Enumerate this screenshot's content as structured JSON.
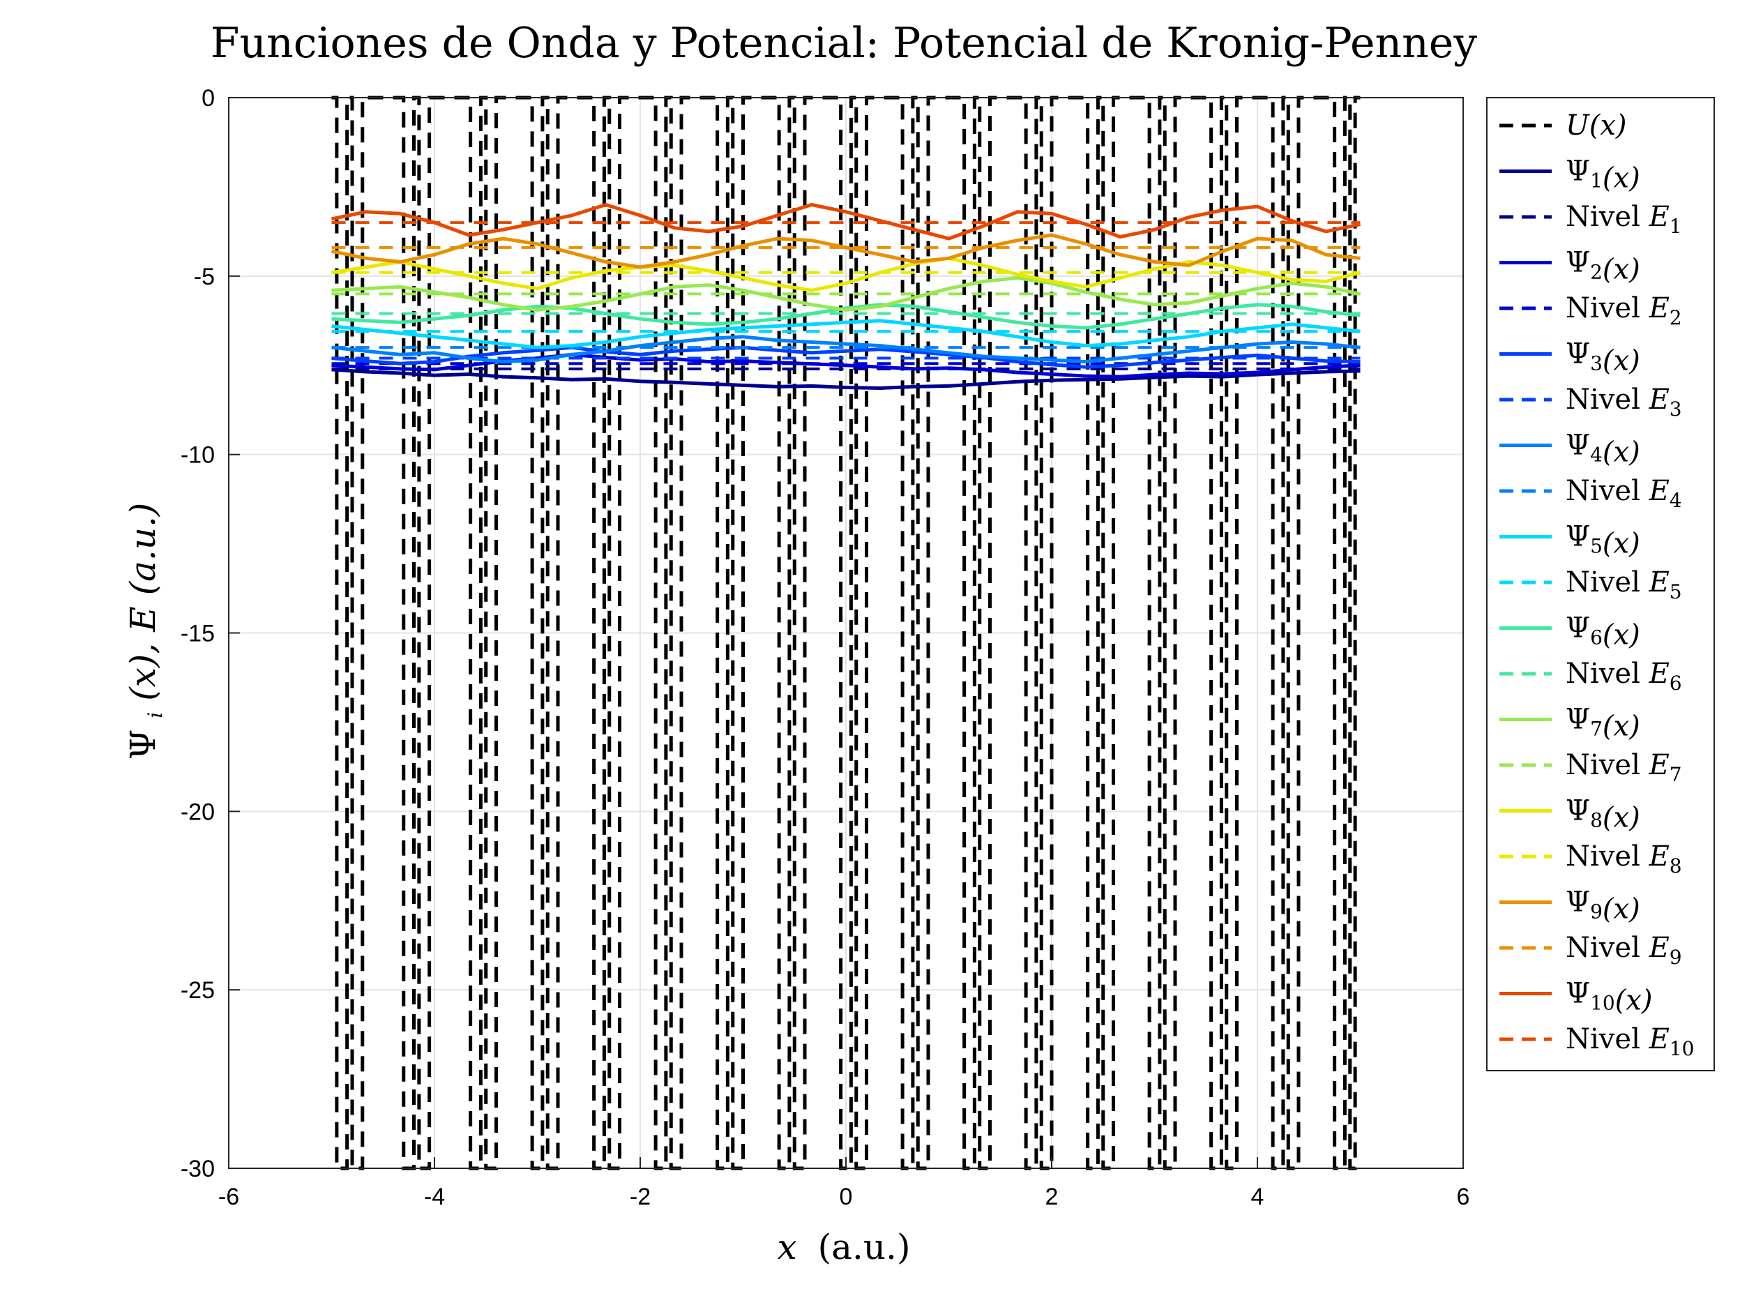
{
  "chart_data": {
    "type": "line",
    "title": "Funciones de Onda y Potencial: Potencial de Kronig-Penney",
    "xlabel_var": "x",
    "xlabel_unit": "(a.u.)",
    "ylabel_main": "Ψ",
    "ylabel_sub": "i",
    "ylabel_rest": "(x), E (a.u.)",
    "xlim": [
      -6,
      6
    ],
    "ylim": [
      -30,
      0
    ],
    "xticks": [
      -6,
      -4,
      -2,
      0,
      2,
      4,
      6
    ],
    "yticks": [
      0,
      -5,
      -10,
      -15,
      -20,
      -25,
      -30
    ],
    "grid": true,
    "legend_position": "outside-right",
    "potential": {
      "name": "U(x)",
      "color": "#000000",
      "top": 0,
      "bottom": -30,
      "wells": [
        [
          -4.95,
          -4.85
        ],
        [
          -4.8,
          -4.7
        ],
        [
          -4.3,
          -4.2
        ],
        [
          -4.15,
          -4.05
        ],
        [
          -3.65,
          -3.55
        ],
        [
          -3.5,
          -3.4
        ],
        [
          -3.05,
          -2.95
        ],
        [
          -2.9,
          -2.8
        ],
        [
          -2.45,
          -2.35
        ],
        [
          -2.3,
          -2.2
        ],
        [
          -1.85,
          -1.75
        ],
        [
          -1.7,
          -1.6
        ],
        [
          -1.25,
          -1.15
        ],
        [
          -1.1,
          -1.0
        ],
        [
          -0.65,
          -0.55
        ],
        [
          -0.5,
          -0.4
        ],
        [
          -0.05,
          0.05
        ],
        [
          0.1,
          0.2
        ],
        [
          0.55,
          0.65
        ],
        [
          0.7,
          0.8
        ],
        [
          1.15,
          1.25
        ],
        [
          1.3,
          1.4
        ],
        [
          1.75,
          1.85
        ],
        [
          1.9,
          2.0
        ],
        [
          2.35,
          2.45
        ],
        [
          2.5,
          2.6
        ],
        [
          2.95,
          3.05
        ],
        [
          3.1,
          3.2
        ],
        [
          3.55,
          3.65
        ],
        [
          3.7,
          3.8
        ],
        [
          4.15,
          4.25
        ],
        [
          4.3,
          4.4
        ],
        [
          4.75,
          4.85
        ],
        [
          4.9,
          4.95
        ]
      ]
    },
    "series": [
      {
        "name": "Ψ1(x)",
        "level_name": "Nivel E1",
        "color": "#00008f",
        "energy": -7.6,
        "y": [
          -7.62,
          -7.68,
          -7.72,
          -7.78,
          -7.75,
          -7.82,
          -7.85,
          -7.9,
          -7.88,
          -7.95,
          -7.98,
          -8.02,
          -8.06,
          -8.1,
          -8.08,
          -8.12,
          -8.14,
          -8.1,
          -8.08,
          -8.02,
          -7.96,
          -7.92,
          -7.9,
          -7.88,
          -7.84,
          -7.8,
          -7.82,
          -7.76,
          -7.72,
          -7.68,
          -7.66
        ]
      },
      {
        "name": "Ψ2(x)",
        "level_name": "Nivel E2",
        "color": "#0000d8",
        "energy": -7.45,
        "y": [
          -7.5,
          -7.55,
          -7.6,
          -7.62,
          -7.5,
          -7.38,
          -7.3,
          -7.2,
          -7.28,
          -7.35,
          -7.32,
          -7.4,
          -7.38,
          -7.42,
          -7.46,
          -7.5,
          -7.55,
          -7.6,
          -7.58,
          -7.62,
          -7.7,
          -7.75,
          -7.8,
          -7.82,
          -7.76,
          -7.72,
          -7.74,
          -7.7,
          -7.62,
          -7.55,
          -7.5
        ]
      },
      {
        "name": "Ψ3(x)",
        "level_name": "Nivel E3",
        "color": "#0040ff",
        "energy": -7.3,
        "y": [
          -7.3,
          -7.38,
          -7.45,
          -7.4,
          -7.25,
          -7.15,
          -7.08,
          -7.0,
          -7.12,
          -7.2,
          -7.1,
          -7.05,
          -7.0,
          -7.08,
          -7.15,
          -7.1,
          -7.05,
          -7.12,
          -7.2,
          -7.28,
          -7.4,
          -7.48,
          -7.55,
          -7.5,
          -7.42,
          -7.35,
          -7.28,
          -7.22,
          -7.3,
          -7.38,
          -7.4
        ]
      },
      {
        "name": "Ψ4(x)",
        "level_name": "Nivel E4",
        "color": "#0080ff",
        "energy": -7.0,
        "y": [
          -7.0,
          -7.1,
          -7.2,
          -7.15,
          -7.3,
          -7.4,
          -7.35,
          -7.2,
          -7.1,
          -6.95,
          -6.85,
          -6.75,
          -6.7,
          -6.8,
          -6.85,
          -6.9,
          -6.95,
          -7.05,
          -7.15,
          -7.25,
          -7.3,
          -7.35,
          -7.4,
          -7.3,
          -7.2,
          -7.1,
          -7.0,
          -6.9,
          -6.85,
          -6.9,
          -7.0
        ]
      },
      {
        "name": "Ψ5(x)",
        "level_name": "Nivel E5",
        "color": "#00d8ff",
        "energy": -6.55,
        "y": [
          -6.4,
          -6.5,
          -6.6,
          -6.7,
          -6.8,
          -6.9,
          -7.0,
          -6.95,
          -6.85,
          -6.7,
          -6.6,
          -6.5,
          -6.45,
          -6.4,
          -6.35,
          -6.3,
          -6.25,
          -6.35,
          -6.45,
          -6.55,
          -6.7,
          -6.85,
          -6.95,
          -6.9,
          -6.8,
          -6.7,
          -6.55,
          -6.45,
          -6.35,
          -6.45,
          -6.55
        ]
      },
      {
        "name": "Ψ6(x)",
        "level_name": "Nivel E6",
        "color": "#40e8a0",
        "energy": -6.05,
        "y": [
          -6.2,
          -6.25,
          -6.3,
          -6.2,
          -6.1,
          -5.95,
          -5.85,
          -5.9,
          -6.05,
          -6.2,
          -6.3,
          -6.35,
          -6.3,
          -6.2,
          -6.05,
          -5.9,
          -5.8,
          -5.85,
          -6.0,
          -6.15,
          -6.3,
          -6.4,
          -6.45,
          -6.35,
          -6.2,
          -6.05,
          -5.9,
          -5.8,
          -5.85,
          -6.0,
          -6.1
        ]
      },
      {
        "name": "Ψ7(x)",
        "level_name": "Nivel E7",
        "color": "#98e850",
        "energy": -5.5,
        "y": [
          -5.4,
          -5.35,
          -5.3,
          -5.45,
          -5.6,
          -5.8,
          -5.95,
          -5.85,
          -5.7,
          -5.5,
          -5.3,
          -5.25,
          -5.4,
          -5.6,
          -5.8,
          -5.95,
          -5.85,
          -5.6,
          -5.35,
          -5.15,
          -5.05,
          -5.2,
          -5.45,
          -5.65,
          -5.8,
          -5.75,
          -5.55,
          -5.35,
          -5.2,
          -5.3,
          -5.5
        ]
      },
      {
        "name": "Ψ8(x)",
        "level_name": "Nivel E8",
        "color": "#e8e800",
        "energy": -4.9,
        "y": [
          -4.9,
          -4.75,
          -4.6,
          -4.8,
          -5.0,
          -5.2,
          -5.35,
          -5.05,
          -4.85,
          -4.75,
          -4.7,
          -4.85,
          -5.05,
          -5.25,
          -5.4,
          -5.2,
          -4.9,
          -4.65,
          -4.5,
          -4.7,
          -4.95,
          -5.15,
          -5.3,
          -5.05,
          -4.8,
          -4.6,
          -4.7,
          -4.9,
          -5.1,
          -5.15,
          -4.9
        ]
      },
      {
        "name": "Ψ9(x)",
        "level_name": "Nivel E9",
        "color": "#e89000",
        "energy": -4.2,
        "y": [
          -4.3,
          -4.5,
          -4.6,
          -4.4,
          -4.1,
          -3.95,
          -4.1,
          -4.35,
          -4.6,
          -4.75,
          -4.6,
          -4.4,
          -4.15,
          -3.95,
          -4.0,
          -4.2,
          -4.4,
          -4.6,
          -4.5,
          -4.2,
          -4.0,
          -3.85,
          -4.1,
          -4.4,
          -4.6,
          -4.7,
          -4.3,
          -3.95,
          -4.0,
          -4.4,
          -4.5
        ]
      },
      {
        "name": "Ψ10(x)",
        "level_name": "Nivel E10",
        "color": "#e84800",
        "energy": -3.5,
        "y": [
          -3.4,
          -3.2,
          -3.25,
          -3.5,
          -3.85,
          -3.7,
          -3.5,
          -3.3,
          -3.0,
          -3.3,
          -3.65,
          -3.75,
          -3.6,
          -3.3,
          -3.0,
          -3.2,
          -3.45,
          -3.7,
          -3.95,
          -3.6,
          -3.2,
          -3.25,
          -3.55,
          -3.9,
          -3.7,
          -3.35,
          -3.15,
          -3.05,
          -3.45,
          -3.75,
          -3.55
        ]
      }
    ],
    "series_x_start": -5,
    "series_x_end": 5
  }
}
